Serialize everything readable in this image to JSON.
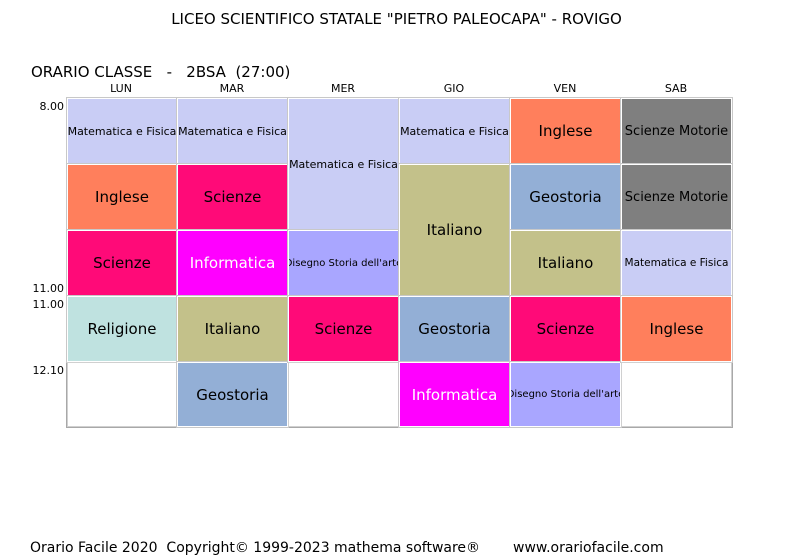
{
  "header": {
    "school": "LICEO SCIENTIFICO STATALE \"PIETRO PALEOCAPA\" - ROVIGO",
    "class_label": "ORARIO CLASSE   -   2BSA  (27:00)"
  },
  "days": [
    "LUN",
    "MAR",
    "MER",
    "GIO",
    "VEN",
    "SAB"
  ],
  "times": [
    "8.00",
    "11.00",
    "11.00",
    "12.10"
  ],
  "colors": {
    "matematica": "#c9cdf5",
    "inglese": "#ff7f5c",
    "scienze": "#ff0a78",
    "scienze_motorie": "#7f7f7f",
    "geostoria": "#93afd6",
    "italiano": "#c3c18a",
    "informatica": "#ff00ff",
    "disegno": "#a9a6ff",
    "religione": "#bfe2e0"
  },
  "schedule": {
    "lun": [
      {
        "subject": "Matematica e Fisica"
      },
      {
        "subject": "Inglese"
      },
      {
        "subject": "Scienze"
      },
      {
        "subject": "Religione"
      },
      {
        "subject": ""
      }
    ],
    "mar": [
      {
        "subject": "Matematica e Fisica"
      },
      {
        "subject": "Scienze"
      },
      {
        "subject": "Informatica"
      },
      {
        "subject": "Italiano"
      },
      {
        "subject": "Geostoria"
      }
    ],
    "mer": [
      {
        "subject": "Matematica e Fisica"
      },
      {
        "subject": "Disegno Storia dell'arte"
      },
      {
        "subject": "Scienze"
      },
      {
        "subject": ""
      }
    ],
    "gio": [
      {
        "subject": "Matematica e Fisica"
      },
      {
        "subject": "Italiano"
      },
      {
        "subject": "Geostoria"
      },
      {
        "subject": "Informatica"
      }
    ],
    "ven": [
      {
        "subject": "Inglese"
      },
      {
        "subject": "Geostoria"
      },
      {
        "subject": "Italiano"
      },
      {
        "subject": "Scienze"
      },
      {
        "subject": "Disegno Storia dell'arte"
      }
    ],
    "sab": [
      {
        "subject": "Scienze  Motorie"
      },
      {
        "subject": "Scienze  Motorie"
      },
      {
        "subject": "Matematica e Fisica"
      },
      {
        "subject": "Inglese"
      },
      {
        "subject": ""
      }
    ]
  },
  "footer": {
    "copyright": "Orario Facile 2020  Copyright© 1999-2023 mathema software®",
    "website": "www.orariofacile.com"
  }
}
